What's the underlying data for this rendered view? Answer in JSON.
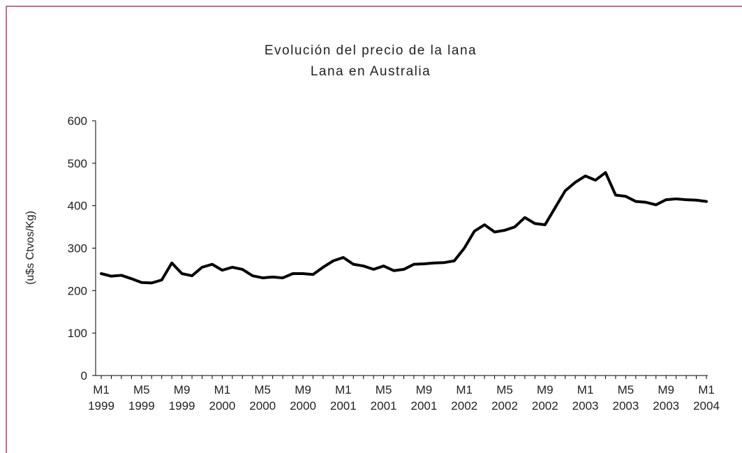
{
  "chart_data": {
    "type": "line",
    "title": "Evolución del precio de la lana",
    "subtitle": "Lana en Australia",
    "y_label": "(u$s Ctvos/Kg)",
    "categories": [
      "M1 1999",
      null,
      null,
      null,
      "M5 1999",
      null,
      null,
      null,
      "M9 1999",
      null,
      null,
      null,
      "M1 2000",
      null,
      null,
      null,
      "M5 2000",
      null,
      null,
      null,
      "M9 2000",
      null,
      null,
      null,
      "M1 2001",
      null,
      null,
      null,
      "M5 2001",
      null,
      null,
      null,
      "M9 2001",
      null,
      null,
      null,
      "M1 2002",
      null,
      null,
      null,
      "M5 2002",
      null,
      null,
      null,
      "M9 2002",
      null,
      null,
      null,
      "M1 2003",
      null,
      null,
      null,
      "M5 2003",
      null,
      null,
      null,
      "M9 2003",
      null,
      null,
      null,
      "M1 2004"
    ],
    "series": [
      {
        "name": "Lana en Australia",
        "color": "#000000",
        "values": [
          240,
          234,
          236,
          228,
          219,
          218,
          225,
          265,
          240,
          235,
          255,
          262,
          248,
          255,
          250,
          235,
          230,
          232,
          230,
          240,
          240,
          238,
          255,
          270,
          278,
          262,
          258,
          250,
          258,
          247,
          250,
          262,
          263,
          265,
          266,
          270,
          300,
          340,
          355,
          338,
          342,
          350,
          372,
          358,
          355,
          395,
          435,
          455,
          470,
          460,
          478,
          425,
          422,
          410,
          408,
          402,
          414,
          416,
          414,
          413,
          410
        ]
      }
    ],
    "ylim": [
      0,
      600
    ],
    "yticks": [
      0,
      100,
      200,
      300,
      400,
      500,
      600
    ],
    "grid": false
  }
}
